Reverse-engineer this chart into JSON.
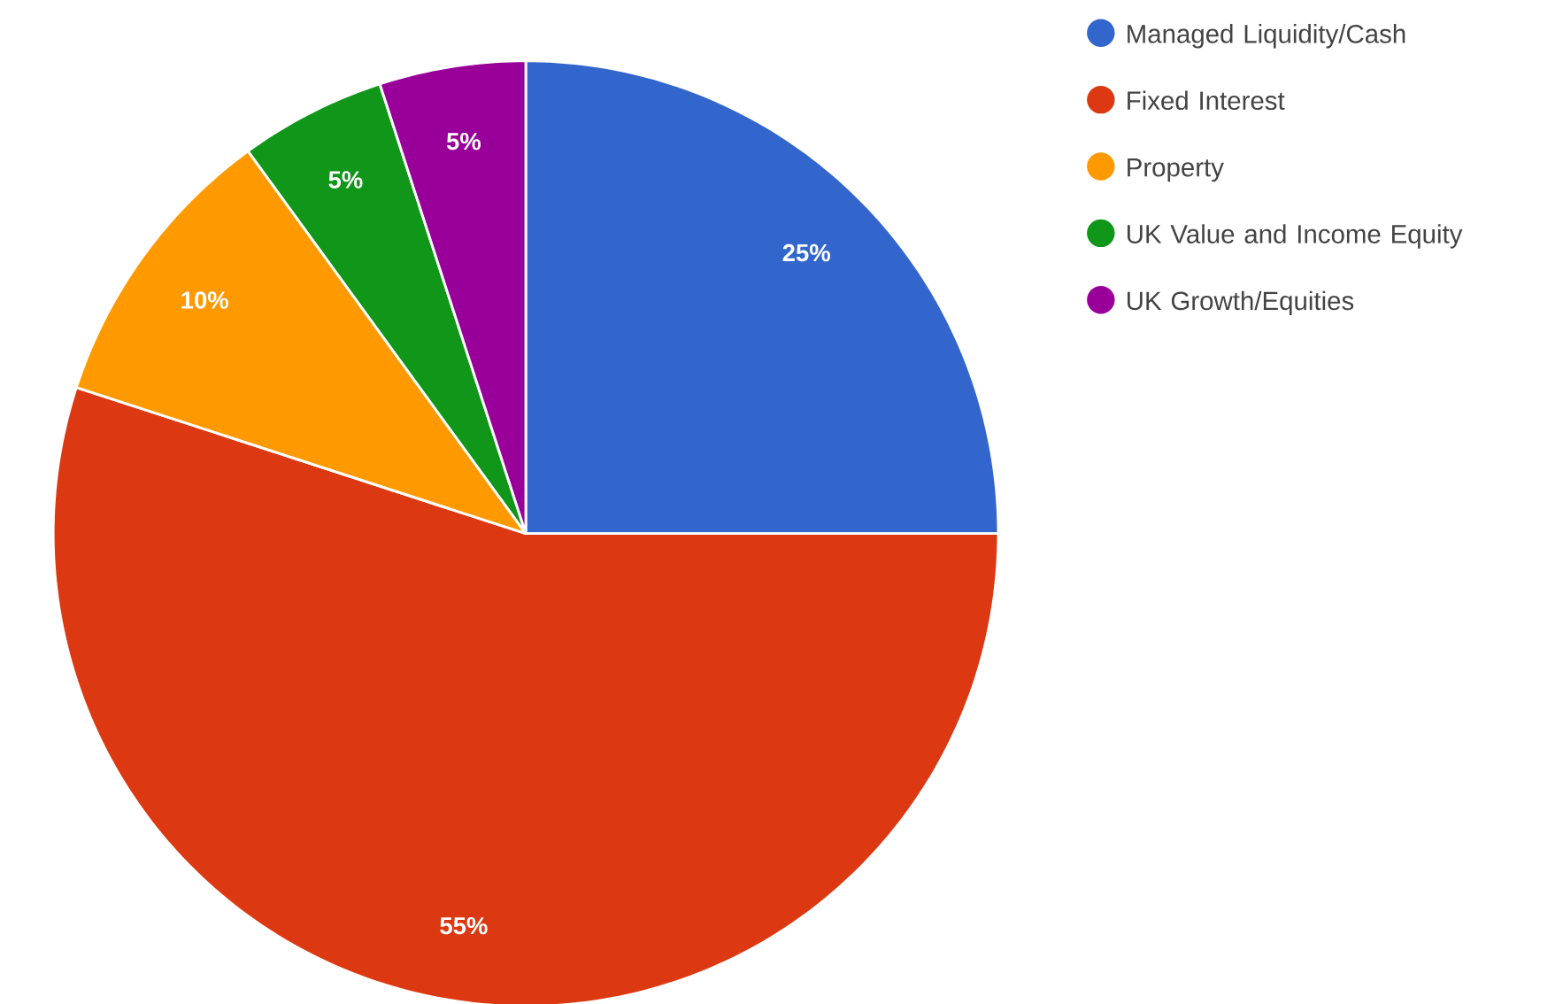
{
  "chart_data": {
    "type": "pie",
    "categories": [
      "Managed Liquidity/Cash",
      "Fixed Interest",
      "Property",
      "UK Value and Income Equity",
      "UK Growth/Equities"
    ],
    "values": [
      25,
      55,
      10,
      5,
      5
    ],
    "colors": [
      "#3366cc",
      "#dc3912",
      "#ff9900",
      "#109618",
      "#990099"
    ],
    "value_labels": [
      "25%",
      "55%",
      "10%",
      "5%",
      "5%"
    ],
    "legend": "top right"
  }
}
